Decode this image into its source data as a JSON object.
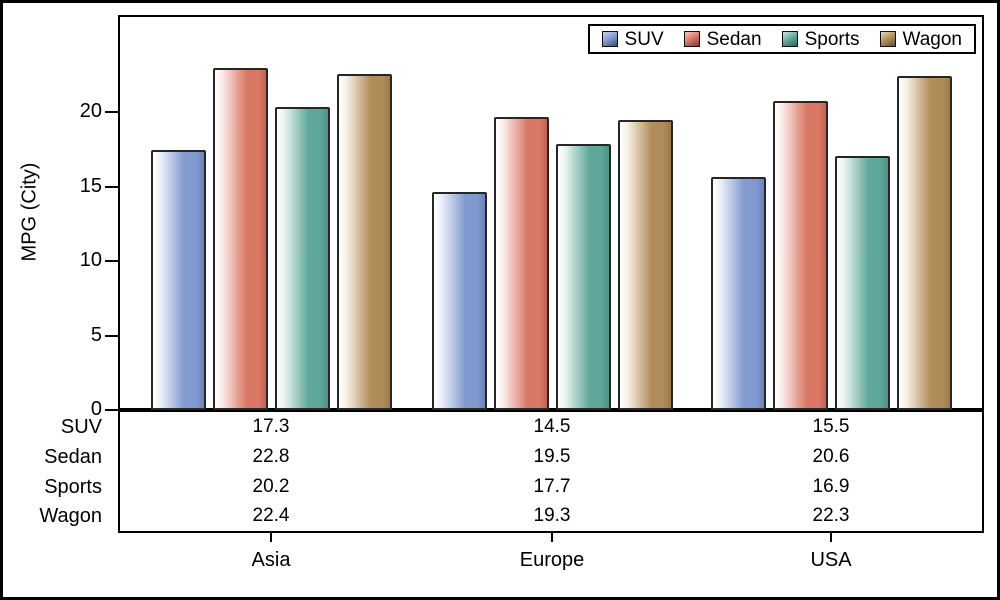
{
  "chart_data": {
    "type": "bar",
    "title": "",
    "ylabel": "MPG (City)",
    "xlabel": "",
    "categories": [
      "Asia",
      "Europe",
      "USA"
    ],
    "series": [
      {
        "name": "SUV",
        "values": [
          17.3,
          14.5,
          15.5
        ],
        "color_main": "#8099cf",
        "color_light": "#eef1f8",
        "color_dark": "#6882b8",
        "swatch_light": "#c9d4ec",
        "swatch_dark": "#3c5180"
      },
      {
        "name": "Sedan",
        "values": [
          22.8,
          19.5,
          20.6
        ],
        "color_main": "#d97765",
        "color_light": "#fbece8",
        "color_dark": "#c9614f",
        "swatch_light": "#f2cdc6",
        "swatch_dark": "#8f3b2f"
      },
      {
        "name": "Sports",
        "values": [
          20.2,
          17.7,
          16.9
        ],
        "color_main": "#5fa79b",
        "color_light": "#e9f4f0",
        "color_dark": "#4d9488",
        "swatch_light": "#cde4dd",
        "swatch_dark": "#2f6b61"
      },
      {
        "name": "Wagon",
        "values": [
          22.4,
          19.3,
          22.3
        ],
        "color_main": "#b18c5b",
        "color_light": "#f8f2e6",
        "color_dark": "#9d7a49",
        "swatch_light": "#e7dabd",
        "swatch_dark": "#6d5632"
      }
    ],
    "y_ticks": [
      0,
      5,
      10,
      15,
      20
    ],
    "ylim": [
      0,
      26.5
    ],
    "grid": false,
    "legend_position": "top-right",
    "data_table": {
      "row_labels": [
        "SUV",
        "Sedan",
        "Sports",
        "Wagon"
      ],
      "rows": [
        [
          "17.3",
          "14.5",
          "15.5"
        ],
        [
          "22.8",
          "19.5",
          "20.6"
        ],
        [
          "20.2",
          "17.7",
          "16.9"
        ],
        [
          "22.4",
          "19.3",
          "22.3"
        ]
      ]
    }
  },
  "colors": {
    "frame": "#000000",
    "background": "#ffffff",
    "bar_border": "#262626",
    "text": "#000000"
  }
}
